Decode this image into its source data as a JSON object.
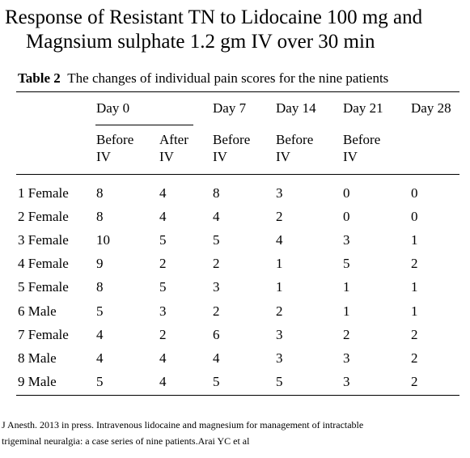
{
  "title": [
    "Response of Resistant TN to Lidocaine 100 mg and",
    "Magnsium sulphate 1.2 gm IV over 30 min"
  ],
  "caption": {
    "label": "Table 2",
    "text": "The changes of individual pain scores for the nine patients"
  },
  "header": {
    "days": [
      "Day 0",
      "Day 7",
      "Day 14",
      "Day 21",
      "Day 28"
    ],
    "sub": [
      [
        "Before",
        "IV"
      ],
      [
        "After",
        "IV"
      ],
      [
        "Before",
        "IV"
      ],
      [
        "Before",
        "IV"
      ],
      [
        "Before",
        "IV"
      ]
    ]
  },
  "rows": [
    {
      "label": "1 Female",
      "values": [
        8,
        4,
        8,
        3,
        0,
        0
      ]
    },
    {
      "label": "2 Female",
      "values": [
        8,
        4,
        4,
        2,
        0,
        0
      ]
    },
    {
      "label": "3 Female",
      "values": [
        10,
        5,
        5,
        4,
        3,
        1
      ]
    },
    {
      "label": "4 Female",
      "values": [
        9,
        2,
        2,
        1,
        5,
        2
      ]
    },
    {
      "label": "5 Female",
      "values": [
        8,
        5,
        3,
        1,
        1,
        1
      ]
    },
    {
      "label": "6 Male",
      "values": [
        5,
        3,
        2,
        2,
        1,
        1
      ]
    },
    {
      "label": "7 Female",
      "values": [
        4,
        2,
        6,
        3,
        2,
        2
      ]
    },
    {
      "label": "8 Male",
      "values": [
        4,
        4,
        4,
        3,
        3,
        2
      ]
    },
    {
      "label": "9 Male",
      "values": [
        5,
        4,
        5,
        5,
        3,
        2
      ]
    }
  ],
  "footnote": [
    "J Anesth. 2013 in press. Intravenous lidocaine and magnesium for management of intractable",
    "trigeminal neuralgia: a case series of nine patients.Arai YC et al"
  ]
}
